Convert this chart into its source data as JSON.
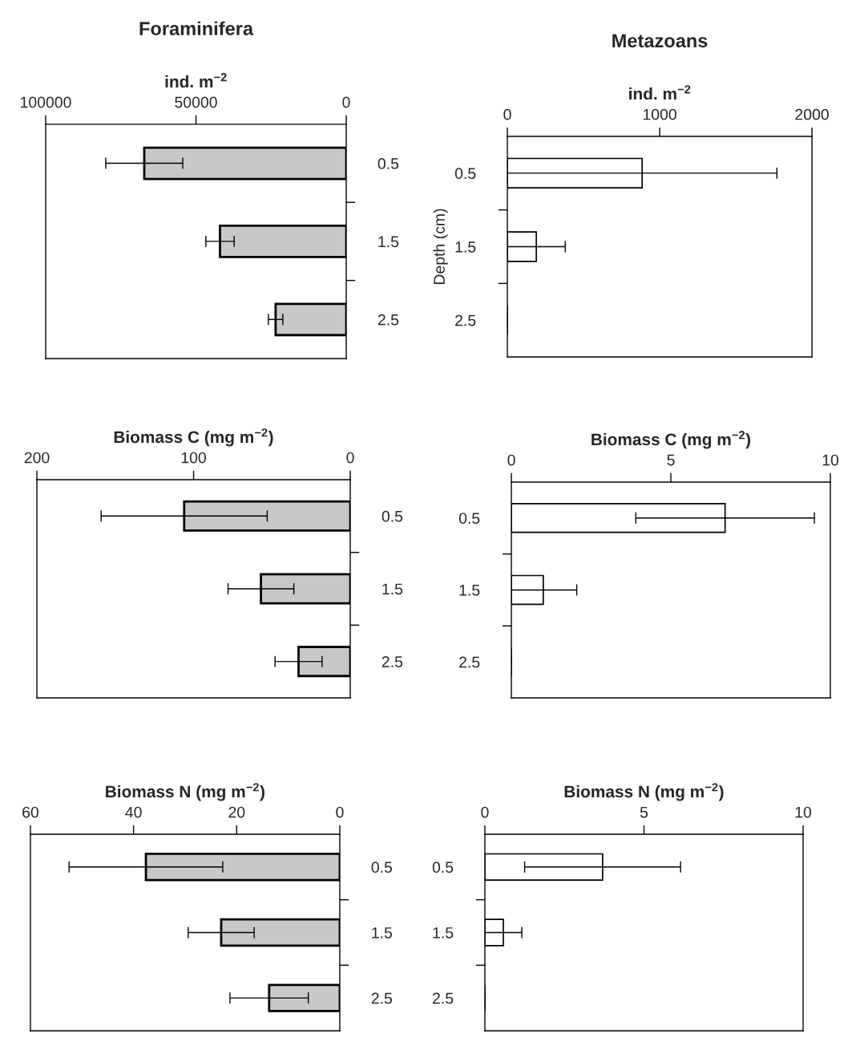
{
  "chart_data": [
    {
      "type": "bar",
      "orientation": "horizontal",
      "title": "Foraminifera",
      "xlabel": "ind. m$^{−2}$",
      "categories": [
        "0.5",
        "1.5",
        "2.5"
      ],
      "values": [
        67200,
        42000,
        23500
      ],
      "errors": [
        12800,
        4700,
        2400
      ],
      "color": "#c8c8c8",
      "xlim": [
        100000,
        0
      ],
      "xticks": [
        100000,
        50000,
        0
      ],
      "grid": false
    },
    {
      "type": "bar",
      "orientation": "horizontal",
      "title": "Metazoans",
      "xlabel": "ind. m$^{−2}$",
      "ylabel": "Depth (cm)",
      "categories": [
        "0.5",
        "1.5",
        "2.5"
      ],
      "values": [
        885,
        190,
        0
      ],
      "errors": [
        885,
        190,
        null
      ],
      "color": "#ffffff",
      "xlim": [
        0,
        2000
      ],
      "xticks": [
        0,
        1000,
        2000
      ],
      "grid": false
    },
    {
      "type": "bar",
      "orientation": "horizontal",
      "xlabel": "Biomass C (mg m$^{−2}$)",
      "categories": [
        "0.5",
        "1.5",
        "2.5"
      ],
      "values": [
        106,
        57,
        33
      ],
      "errors": [
        53,
        21,
        15
      ],
      "color": "#c8c8c8",
      "xlim": [
        200,
        0
      ],
      "xticks": [
        200,
        100,
        0
      ],
      "grid": false
    },
    {
      "type": "bar",
      "orientation": "horizontal",
      "xlabel": "Biomass C (mg m$^{−2}$)",
      "categories": [
        "0.5",
        "1.5",
        "2.5"
      ],
      "values": [
        6.7,
        1.0,
        0
      ],
      "errors": [
        2.8,
        1.05,
        null
      ],
      "color": "#ffffff",
      "xlim": [
        0,
        10
      ],
      "xticks": [
        0,
        5,
        10
      ],
      "grid": false
    },
    {
      "type": "bar",
      "orientation": "horizontal",
      "xlabel": "Biomass N (mg m$^{−2}$)",
      "categories": [
        "0.5",
        "1.5",
        "2.5"
      ],
      "values": [
        37.6,
        23.0,
        13.7
      ],
      "errors": [
        14.9,
        6.4,
        7.6
      ],
      "color": "#c8c8c8",
      "xlim": [
        60,
        0
      ],
      "xticks": [
        60,
        40,
        20,
        0
      ],
      "grid": false
    },
    {
      "type": "bar",
      "orientation": "horizontal",
      "xlabel": "Biomass N (mg m$^{−2}$)",
      "categories": [
        "0.5",
        "1.5",
        "2.5"
      ],
      "values": [
        3.7,
        0.58,
        0
      ],
      "errors": [
        2.45,
        0.58,
        null
      ],
      "color": "#ffffff",
      "xlim": [
        0,
        10
      ],
      "xticks": [
        0,
        5,
        10
      ],
      "grid": false
    }
  ]
}
